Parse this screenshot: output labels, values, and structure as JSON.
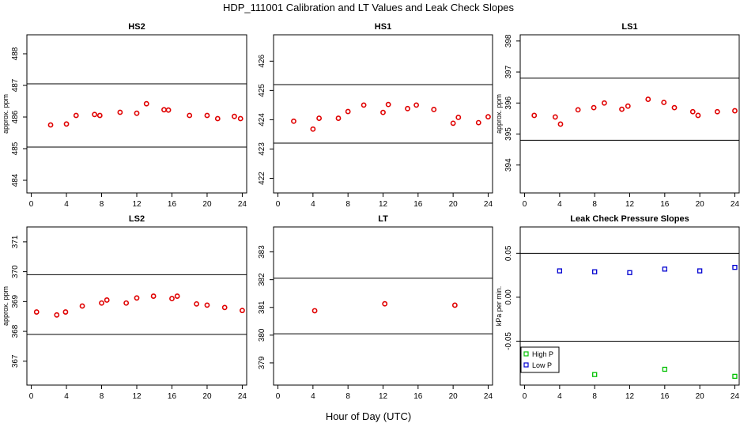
{
  "figure": {
    "title": "HDP_111001  Calibration and LT Values and Leak Check Slopes",
    "xlabel": "Hour of Day (UTC)"
  },
  "chart_data": [
    {
      "id": "hs2",
      "type": "scatter",
      "title": "HS2",
      "ylabel": "approx. ppm",
      "xlim": [
        -0.5,
        24.5
      ],
      "ylim": [
        483.6,
        488.6
      ],
      "xticks": [
        0,
        4,
        8,
        12,
        16,
        20,
        24
      ],
      "yticks": [
        484,
        485,
        486,
        487,
        488
      ],
      "hlines": [
        487.05,
        485.05
      ],
      "series": [
        {
          "color": "#e00000",
          "marker": "circle",
          "x": [
            2.2,
            4.0,
            5.1,
            7.2,
            7.8,
            10.1,
            12.0,
            13.1,
            15.1,
            15.6,
            18.0,
            20.0,
            21.2,
            23.1,
            23.8
          ],
          "y": [
            485.75,
            485.78,
            486.05,
            486.08,
            486.05,
            486.15,
            486.12,
            486.42,
            486.23,
            486.22,
            486.05,
            486.05,
            485.95,
            486.02,
            485.95
          ]
        }
      ]
    },
    {
      "id": "hs1",
      "type": "scatter",
      "title": "HS1",
      "ylabel": "",
      "xlim": [
        -0.5,
        24.5
      ],
      "ylim": [
        421.5,
        426.9
      ],
      "xticks": [
        0,
        4,
        8,
        12,
        16,
        20,
        24
      ],
      "yticks": [
        422,
        423,
        424,
        425,
        426
      ],
      "hlines": [
        425.2,
        423.2
      ],
      "series": [
        {
          "color": "#e00000",
          "marker": "circle",
          "x": [
            1.8,
            4.0,
            4.7,
            6.9,
            8.0,
            9.8,
            12.0,
            12.6,
            14.8,
            15.8,
            17.8,
            20.0,
            20.6,
            22.9,
            24.0
          ],
          "y": [
            423.95,
            423.68,
            424.05,
            424.05,
            424.28,
            424.5,
            424.25,
            424.52,
            424.38,
            424.5,
            424.35,
            423.88,
            424.08,
            423.9,
            424.1
          ]
        }
      ]
    },
    {
      "id": "ls1",
      "type": "scatter",
      "title": "LS1",
      "ylabel": "approx. ppm",
      "xlim": [
        -0.5,
        24.5
      ],
      "ylim": [
        393.1,
        398.2
      ],
      "xticks": [
        0,
        4,
        8,
        12,
        16,
        20,
        24
      ],
      "yticks": [
        394,
        395,
        396,
        397,
        398
      ],
      "hlines": [
        396.8,
        394.8
      ],
      "series": [
        {
          "color": "#e00000",
          "marker": "circle",
          "x": [
            1.1,
            3.5,
            4.1,
            6.1,
            7.9,
            9.1,
            11.1,
            11.8,
            14.1,
            15.9,
            17.1,
            19.2,
            19.8,
            22.0,
            24.0
          ],
          "y": [
            395.6,
            395.55,
            395.32,
            395.78,
            395.85,
            396.0,
            395.8,
            395.9,
            396.12,
            396.02,
            395.85,
            395.72,
            395.6,
            395.72,
            395.75
          ]
        }
      ]
    },
    {
      "id": "ls2",
      "type": "scatter",
      "title": "LS2",
      "ylabel": "approx. ppm",
      "xlim": [
        -0.5,
        24.5
      ],
      "ylim": [
        366.2,
        371.5
      ],
      "xticks": [
        0,
        4,
        8,
        12,
        16,
        20,
        24
      ],
      "yticks": [
        367,
        368,
        369,
        370,
        371
      ],
      "hlines": [
        369.9,
        367.9
      ],
      "series": [
        {
          "color": "#e00000",
          "marker": "circle",
          "x": [
            0.6,
            2.9,
            3.9,
            5.8,
            8.0,
            8.6,
            10.8,
            12.0,
            13.9,
            16.0,
            16.6,
            18.8,
            20.0,
            22.0,
            24.0
          ],
          "y": [
            368.65,
            368.55,
            368.65,
            368.85,
            368.95,
            369.05,
            368.95,
            369.12,
            369.18,
            369.1,
            369.18,
            368.92,
            368.88,
            368.8,
            368.7
          ]
        }
      ]
    },
    {
      "id": "lt",
      "type": "scatter",
      "title": "LT",
      "ylabel": "",
      "xlim": [
        -0.5,
        24.5
      ],
      "ylim": [
        378.2,
        383.9
      ],
      "xticks": [
        0,
        4,
        8,
        12,
        16,
        20,
        24
      ],
      "yticks": [
        379,
        380,
        381,
        382,
        383
      ],
      "hlines": [
        382.05,
        380.05
      ],
      "series": [
        {
          "color": "#e00000",
          "marker": "circle",
          "x": [
            4.2,
            12.2,
            20.2
          ],
          "y": [
            380.88,
            381.13,
            381.08
          ]
        }
      ]
    },
    {
      "id": "leak",
      "type": "scatter",
      "title": "Leak Check Pressure Slopes",
      "ylabel": "kPa per min.",
      "xlim": [
        -0.5,
        24.5
      ],
      "ylim": [
        -0.1,
        0.08
      ],
      "xticks": [
        0,
        4,
        8,
        12,
        16,
        20,
        24
      ],
      "yticks": [
        -0.05,
        0.0,
        0.05
      ],
      "ytick_labels": [
        "-0.05",
        "0.00",
        "0.05"
      ],
      "hlines": [
        0.05,
        -0.05
      ],
      "legend": {
        "position": "bottom-left"
      },
      "series": [
        {
          "name": "High P",
          "color": "#00c000",
          "marker": "square",
          "x": [
            8.0,
            16.0,
            24.0
          ],
          "y": [
            -0.088,
            -0.082,
            -0.09
          ]
        },
        {
          "name": "Low P",
          "color": "#0000d0",
          "marker": "square",
          "x": [
            4.0,
            8.0,
            12.0,
            16.0,
            20.0,
            24.0
          ],
          "y": [
            0.03,
            0.029,
            0.028,
            0.032,
            0.03,
            0.034
          ]
        }
      ]
    }
  ]
}
